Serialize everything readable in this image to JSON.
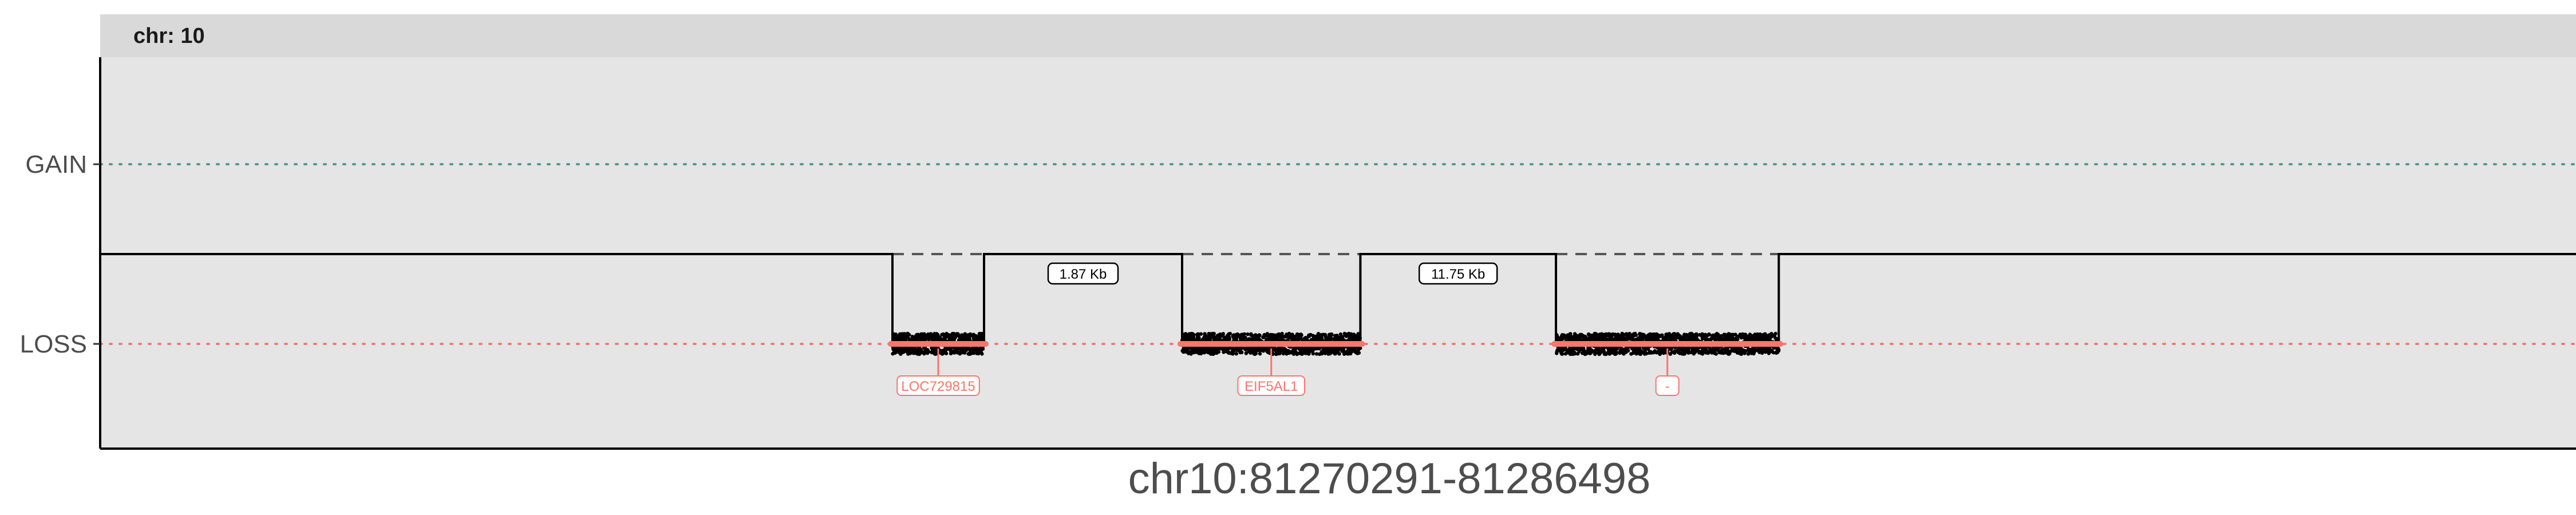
{
  "colors": {
    "panel_bg": "#e5e5e5",
    "strip_bg": "#d9d9d9",
    "gain_line": "#4f9a94",
    "loss_line": "#f07c74",
    "gene": "#f8766d",
    "points": "#000000"
  },
  "chart_data": {
    "type": "scatter",
    "facet_label": "chr: 10",
    "xlabel": "chr10:81270291-81286498",
    "y_categories": [
      "GAIN",
      "LOSS"
    ],
    "grid": false,
    "segments": [
      {
        "id": "seg1",
        "state": "LOSS",
        "x_start": 0.32,
        "x_end": 0.357,
        "gene": "LOC729815"
      },
      {
        "id": "seg2",
        "state": "LOSS",
        "x_start": 0.437,
        "x_end": 0.509,
        "gene": "EIF5AL1"
      },
      {
        "id": "seg3",
        "state": "LOSS",
        "x_start": 0.588,
        "x_end": 0.678,
        "gene": "-"
      }
    ],
    "gaps": [
      {
        "label": "1.87 Kb",
        "between": [
          "seg1",
          "seg2"
        ]
      },
      {
        "label": "11.75 Kb",
        "between": [
          "seg2",
          "seg3"
        ]
      }
    ]
  }
}
